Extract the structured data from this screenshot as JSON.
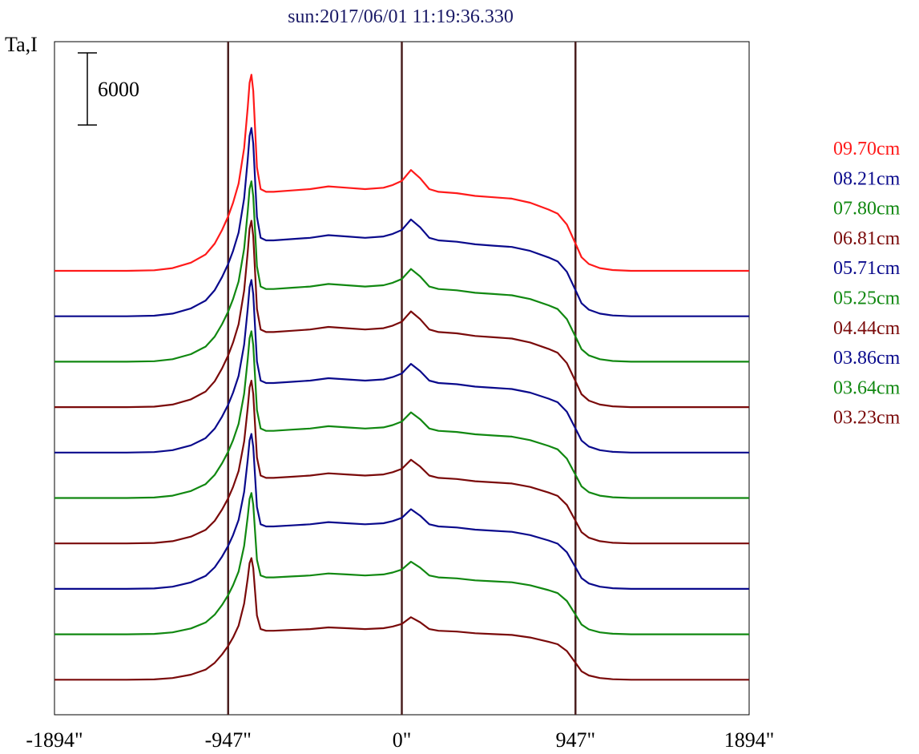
{
  "chart_data": {
    "type": "line",
    "title": "sun:2017/06/01 11:19:36.330",
    "ylabel": "Ta,I",
    "xlabel": "",
    "scale_bar_label": "6000",
    "scale_bar_value": 6000,
    "xlim": [
      -1894,
      1894
    ],
    "x_ticks": [
      {
        "value": -1894,
        "label": "-1894\""
      },
      {
        "value": -947,
        "label": "-947\""
      },
      {
        "value": 0,
        "label": "0\""
      },
      {
        "value": 947,
        "label": "947\""
      },
      {
        "value": 1894,
        "label": "1894\""
      }
    ],
    "vertical_lines": [
      -947,
      0,
      947
    ],
    "vertical_line_color": "#4a1f1f",
    "grid": false,
    "legend_position": "right",
    "profile_x": [
      -1894,
      -1500,
      -1350,
      -1250,
      -1150,
      -1070,
      -1020,
      -980,
      -947,
      -920,
      -890,
      -860,
      -840,
      -830,
      -820,
      -810,
      -800,
      -790,
      -770,
      -740,
      -700,
      -600,
      -500,
      -400,
      -300,
      -200,
      -100,
      -50,
      0,
      50,
      100,
      150,
      200,
      300,
      400,
      500,
      600,
      700,
      800,
      850,
      900,
      947,
      980,
      1020,
      1080,
      1150,
      1250,
      1500,
      1894
    ],
    "profile_shape": [
      0,
      0,
      0.2,
      1,
      3,
      6,
      10,
      15,
      20,
      25,
      32,
      45,
      60,
      69,
      72,
      66,
      52,
      38,
      30,
      29,
      29,
      29.5,
      30,
      31,
      30.5,
      30,
      30.5,
      31.5,
      33,
      37,
      34,
      30,
      29,
      28.5,
      27.5,
      27,
      26.5,
      25,
      22.5,
      21,
      17,
      10,
      5,
      2.5,
      1,
      0.3,
      0,
      0,
      0
    ],
    "series": [
      {
        "name": "09.70cm",
        "color": "#ff1a1a",
        "amplitude": 1.0,
        "offset": 0
      },
      {
        "name": "08.21cm",
        "color": "#0a0a8c",
        "amplitude": 0.96,
        "offset": 0
      },
      {
        "name": "07.80cm",
        "color": "#118811",
        "amplitude": 0.92,
        "offset": 0
      },
      {
        "name": "06.81cm",
        "color": "#7a0a0a",
        "amplitude": 0.95,
        "offset": 0
      },
      {
        "name": "05.71cm",
        "color": "#0a0a8c",
        "amplitude": 0.88,
        "offset": 0
      },
      {
        "name": "05.25cm",
        "color": "#118811",
        "amplitude": 0.85,
        "offset": 0
      },
      {
        "name": "04.44cm",
        "color": "#7a0a0a",
        "amplitude": 0.83,
        "offset": 0
      },
      {
        "name": "03.86cm",
        "color": "#0a0a8c",
        "amplitude": 0.79,
        "offset": 0
      },
      {
        "name": "03.64cm",
        "color": "#118811",
        "amplitude": 0.72,
        "offset": 0
      },
      {
        "name": "03.23cm",
        "color": "#7a0a0a",
        "amplitude": 0.62,
        "offset": 0
      }
    ]
  }
}
